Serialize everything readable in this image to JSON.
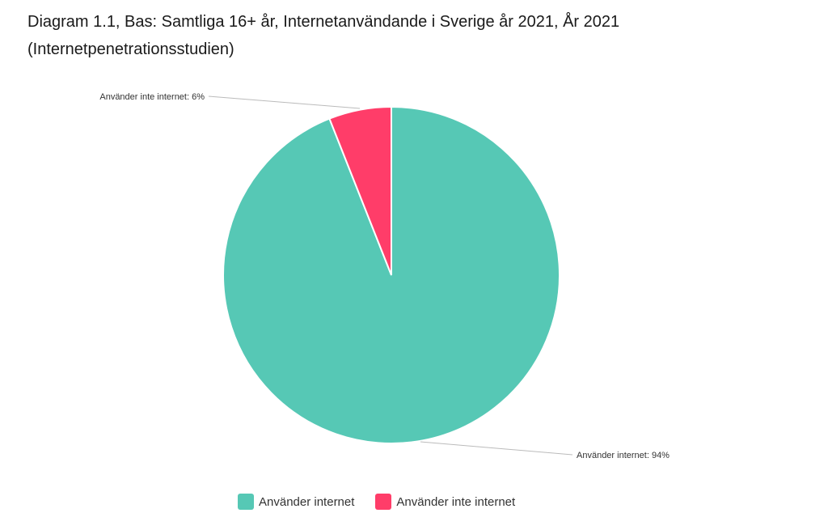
{
  "chart_data": {
    "type": "pie",
    "title": "Diagram 1.1, Bas: Samtliga 16+ år, Internetanvändande i Sverige år 2021, År 2021",
    "subtitle": "(Internetpenetrationsstudien)",
    "slices": [
      {
        "label": "Använder internet",
        "value": 94,
        "color": "#56C8B5",
        "data_label": "Använder internet: 94%"
      },
      {
        "label": "Använder inte internet",
        "value": 6,
        "color": "#FF3D69",
        "data_label": "Använder inte internet: 6%"
      }
    ],
    "legend_position": "bottom"
  }
}
